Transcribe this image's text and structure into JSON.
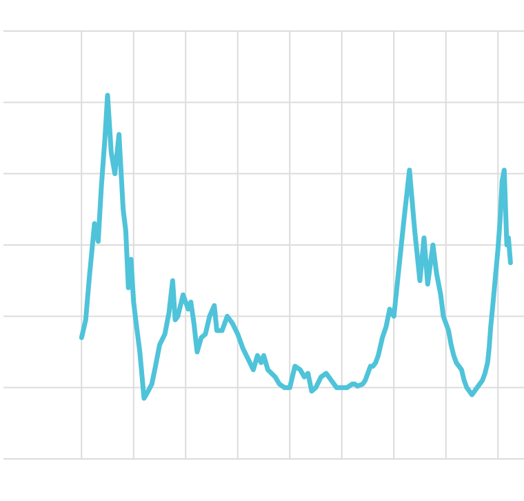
{
  "chart_data": {
    "type": "line",
    "title": "",
    "xlabel": "",
    "ylabel": "",
    "x_tick_labels": [],
    "y_tick_labels": [],
    "grid": true,
    "legend": "none",
    "xlim": [
      0,
      10
    ],
    "ylim": [
      0,
      6
    ],
    "x_gridlines": [
      1.5,
      2.5,
      3.5,
      4.5,
      5.5,
      6.5,
      7.5,
      8.5,
      9.5
    ],
    "y_gridlines": [
      0,
      1,
      2,
      3,
      4,
      5,
      6
    ],
    "series": [
      {
        "color": "#4fc3d9",
        "x": [
          1.5,
          1.58,
          1.65,
          1.75,
          1.82,
          1.88,
          1.95,
          2.0,
          2.07,
          2.14,
          2.22,
          2.3,
          2.35,
          2.4,
          2.45,
          2.5,
          2.55,
          2.62,
          2.7,
          2.78,
          2.85,
          2.92,
          3.0,
          3.1,
          3.18,
          3.25,
          3.3,
          3.35,
          3.45,
          3.55,
          3.6,
          3.66,
          3.72,
          3.8,
          3.88,
          3.96,
          4.05,
          4.1,
          4.2,
          4.3,
          4.4,
          4.5,
          4.6,
          4.7,
          4.8,
          4.88,
          4.95,
          5.0,
          5.08,
          5.15,
          5.22,
          5.3,
          5.4,
          5.5,
          5.6,
          5.7,
          5.78,
          5.85,
          5.92,
          6.0,
          6.1,
          6.2,
          6.3,
          6.4,
          6.5,
          6.6,
          6.7,
          6.75,
          6.8,
          6.9,
          6.95,
          7.0,
          7.05,
          7.1,
          7.15,
          7.2,
          7.28,
          7.35,
          7.42,
          7.5,
          7.6,
          7.7,
          7.8,
          7.9,
          8.0,
          8.08,
          8.15,
          8.25,
          8.32,
          8.4,
          8.45,
          8.5,
          8.55,
          8.6,
          8.65,
          8.7,
          8.75,
          8.8,
          8.85,
          8.9,
          8.95,
          9.0,
          9.05,
          9.1,
          9.15,
          9.2,
          9.25,
          9.3,
          9.33,
          9.36,
          9.4,
          9.45,
          9.5,
          9.54,
          9.58,
          9.62,
          9.67,
          9.7,
          9.74
        ],
        "y": [
          1.7,
          1.95,
          2.55,
          3.3,
          3.05,
          3.8,
          4.5,
          5.1,
          4.3,
          4.0,
          4.55,
          3.5,
          3.2,
          2.4,
          2.8,
          2.2,
          1.9,
          1.5,
          0.85,
          0.95,
          1.05,
          1.3,
          1.6,
          1.75,
          2.05,
          2.5,
          1.95,
          2.0,
          2.3,
          2.1,
          2.2,
          1.9,
          1.5,
          1.7,
          1.75,
          2.0,
          2.15,
          1.8,
          1.8,
          2.0,
          1.9,
          1.75,
          1.55,
          1.4,
          1.25,
          1.45,
          1.35,
          1.45,
          1.25,
          1.2,
          1.15,
          1.05,
          1.0,
          1.0,
          1.3,
          1.25,
          1.15,
          1.2,
          0.95,
          1.0,
          1.15,
          1.2,
          1.1,
          1.0,
          1.0,
          1.0,
          1.05,
          1.05,
          1.02,
          1.05,
          1.1,
          1.2,
          1.3,
          1.3,
          1.35,
          1.45,
          1.7,
          1.85,
          2.1,
          2.0,
          2.7,
          3.4,
          4.05,
          3.2,
          2.5,
          3.1,
          2.45,
          3.0,
          2.6,
          2.3,
          2.0,
          1.9,
          1.8,
          1.6,
          1.45,
          1.35,
          1.3,
          1.25,
          1.1,
          1.0,
          0.95,
          0.9,
          0.95,
          1.0,
          1.05,
          1.1,
          1.2,
          1.35,
          1.55,
          1.85,
          2.15,
          2.55,
          2.95,
          3.35,
          3.9,
          4.05,
          3.0,
          3.1,
          2.75
        ]
      }
    ]
  }
}
